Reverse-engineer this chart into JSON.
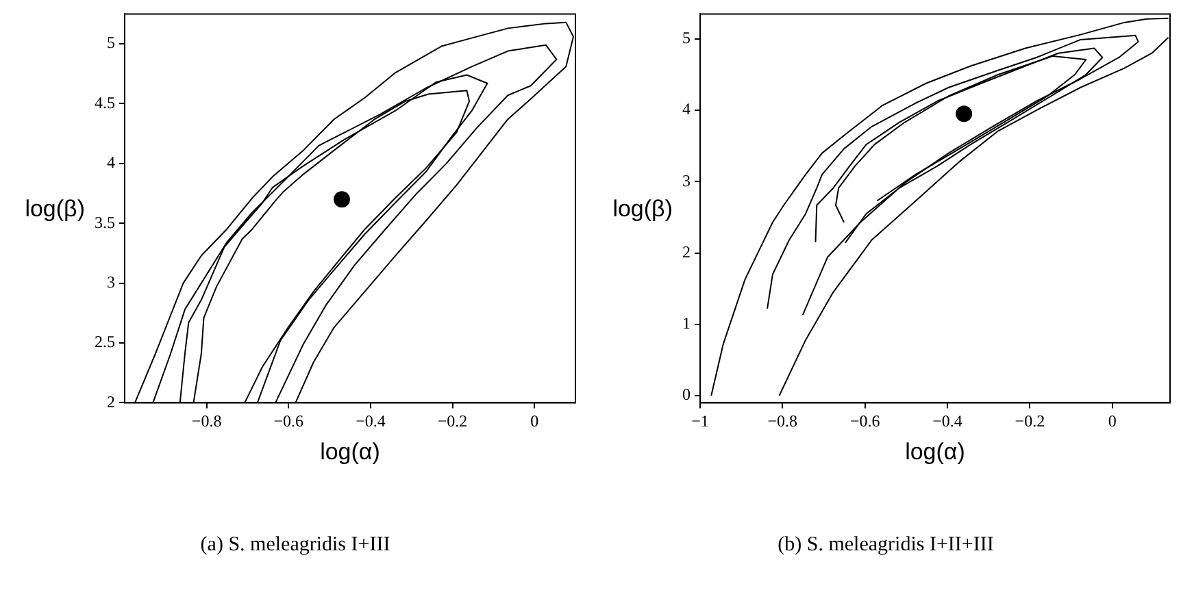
{
  "chart_data": [
    {
      "type": "line",
      "title": "(a) S. meleagridis I+III",
      "xlabel": "log(α)",
      "ylabel": "log(β)",
      "marker": "none",
      "xlim": [
        -1,
        0.1
      ],
      "ylim": [
        2,
        5.25
      ],
      "xticks": [
        {
          "value": -0.8,
          "label": "−0.8"
        },
        {
          "value": -0.6,
          "label": "−0.6"
        },
        {
          "value": -0.4,
          "label": "−0.4"
        },
        {
          "value": -0.2,
          "label": "−0.2"
        },
        0
      ],
      "yticks": [
        2,
        2.5,
        3,
        3.5,
        4,
        4.5,
        5
      ],
      "series": [
        {
          "color": "#000000",
          "x": [
            -0.975,
            -0.925,
            -0.857,
            -0.813,
            -0.751,
            -0.689,
            -0.639,
            -0.564,
            -0.489,
            -0.414,
            -0.339,
            -0.227,
            -0.152,
            -0.065,
            0.028,
            0.077,
            0.095,
            0.077,
            -0.009,
            -0.065,
            -0.115,
            -0.19,
            -0.265,
            -0.339,
            -0.414,
            -0.489,
            -0.539,
            -0.583
          ],
          "values": [
            2.0,
            2.41,
            3.0,
            3.23,
            3.45,
            3.71,
            3.89,
            4.11,
            4.37,
            4.55,
            4.76,
            4.98,
            5.05,
            5.13,
            5.17,
            5.18,
            5.06,
            4.81,
            4.54,
            4.37,
            4.15,
            3.82,
            3.52,
            3.23,
            2.93,
            2.63,
            2.34,
            2.0
          ]
        },
        {
          "color": "#000000",
          "x": [
            -0.931,
            -0.888,
            -0.853,
            -0.813,
            -0.751,
            -0.689,
            -0.601,
            -0.526,
            -0.377,
            -0.265,
            -0.153,
            -0.065,
            0.028,
            0.054,
            -0.009,
            -0.065,
            -0.14,
            -0.215,
            -0.29,
            -0.364,
            -0.439,
            -0.508,
            -0.564,
            -0.632
          ],
          "values": [
            2.0,
            2.41,
            2.78,
            3.0,
            3.34,
            3.59,
            3.89,
            4.15,
            4.41,
            4.63,
            4.81,
            4.94,
            4.99,
            4.87,
            4.65,
            4.57,
            4.3,
            4.0,
            3.74,
            3.45,
            3.15,
            2.82,
            2.49,
            2.0
          ]
        },
        {
          "color": "#000000",
          "x": [
            -0.865,
            -0.853,
            -0.844,
            -0.813,
            -0.757,
            -0.72,
            -0.664,
            -0.639,
            -0.564,
            -0.464,
            -0.34,
            -0.24,
            -0.165,
            -0.115,
            -0.153,
            -0.203,
            -0.265,
            -0.34,
            -0.414,
            -0.489,
            -0.551,
            -0.62,
            -0.676
          ],
          "values": [
            2.0,
            2.41,
            2.67,
            2.86,
            3.3,
            3.45,
            3.67,
            3.8,
            3.98,
            4.2,
            4.44,
            4.68,
            4.74,
            4.67,
            4.44,
            4.22,
            3.93,
            3.67,
            3.41,
            3.11,
            2.86,
            2.52,
            2.0
          ]
        },
        {
          "color": "#000000",
          "x": [
            -0.832,
            -0.813,
            -0.807,
            -0.776,
            -0.713,
            -0.689,
            -0.632,
            -0.614,
            -0.564,
            -0.489,
            -0.39,
            -0.315,
            -0.259,
            -0.165,
            -0.159,
            -0.19,
            -0.265,
            -0.34,
            -0.414,
            -0.477,
            -0.539,
            -0.601,
            -0.664,
            -0.707
          ],
          "values": [
            2.0,
            2.41,
            2.71,
            2.97,
            3.37,
            3.45,
            3.69,
            3.76,
            3.91,
            4.11,
            4.37,
            4.52,
            4.58,
            4.61,
            4.52,
            4.26,
            3.96,
            3.71,
            3.45,
            3.19,
            2.93,
            2.63,
            2.3,
            2.0
          ]
        },
        {
          "type": "scatter",
          "marker": "circle",
          "color": "#000000",
          "x": [
            -0.47
          ],
          "values": [
            3.7
          ]
        }
      ]
    },
    {
      "type": "line",
      "title": "(b) S. meleagridis I+II+III",
      "xlabel": "log(α)",
      "ylabel": "log(β)",
      "marker": "none",
      "xlim": [
        -1,
        0.14
      ],
      "ylim": [
        -0.1,
        5.35
      ],
      "xticks": [
        {
          "value": -1,
          "label": "−1"
        },
        {
          "value": -0.8,
          "label": "−0.8"
        },
        {
          "value": -0.6,
          "label": "−0.6"
        },
        {
          "value": -0.4,
          "label": "−0.4"
        },
        {
          "value": -0.2,
          "label": "−0.2"
        },
        0
      ],
      "yticks": [
        0,
        1,
        2,
        3,
        4,
        5
      ],
      "series": [
        {
          "color": "#000000",
          "x": [
            -0.973,
            -0.944,
            -0.891,
            -0.824,
            -0.797,
            -0.744,
            -0.704,
            -0.637,
            -0.557,
            -0.451,
            -0.344,
            -0.211,
            -0.077,
            0.029,
            0.083,
            0.136
          ],
          "values": [
            0,
            0.72,
            1.63,
            2.43,
            2.67,
            3.1,
            3.4,
            3.71,
            4.07,
            4.38,
            4.62,
            4.87,
            5.06,
            5.23,
            5.28,
            5.29
          ]
        },
        {
          "color": "#000000",
          "x": [
            0.136,
            0.096,
            0.029,
            -0.077,
            -0.171,
            -0.277,
            -0.371,
            -0.477,
            -0.584,
            -0.677,
            -0.744,
            -0.808
          ],
          "values": [
            5.02,
            4.8,
            4.59,
            4.32,
            4.04,
            3.71,
            3.28,
            2.73,
            2.18,
            1.45,
            0.78,
            0
          ]
        },
        {
          "color": "#000000",
          "x": [
            -0.837,
            -0.824,
            -0.784,
            -0.744,
            -0.717,
            -0.704,
            -0.651,
            -0.584,
            -0.477,
            -0.397,
            -0.277,
            -0.184,
            -0.077,
            0.056,
            0.063,
            0.016,
            -0.077,
            -0.184,
            -0.291,
            -0.397,
            -0.504,
            -0.611,
            -0.691,
            -0.751
          ],
          "values": [
            1.22,
            1.7,
            2.18,
            2.55,
            2.91,
            3.1,
            3.46,
            3.77,
            4.1,
            4.32,
            4.56,
            4.74,
            4.99,
            5.05,
            4.96,
            4.74,
            4.44,
            4.13,
            3.77,
            3.4,
            2.98,
            2.43,
            1.94,
            1.13
          ]
        },
        {
          "color": "#000000",
          "x": [
            -0.72,
            -0.717,
            -0.677,
            -0.637,
            -0.597,
            -0.517,
            -0.424,
            -0.317,
            -0.211,
            -0.131,
            -0.044,
            -0.024,
            -0.064,
            -0.131,
            -0.237,
            -0.344,
            -0.424,
            -0.517,
            -0.597,
            -0.648
          ],
          "values": [
            2.15,
            2.67,
            2.91,
            3.22,
            3.52,
            3.83,
            4.13,
            4.38,
            4.62,
            4.8,
            4.87,
            4.74,
            4.5,
            4.26,
            3.89,
            3.52,
            3.22,
            2.91,
            2.55,
            2.14
          ]
        },
        {
          "color": "#000000",
          "x": [
            -0.651,
            -0.671,
            -0.664,
            -0.624,
            -0.577,
            -0.504,
            -0.397,
            -0.277,
            -0.144,
            -0.064,
            -0.091,
            -0.157,
            -0.264,
            -0.371,
            -0.477,
            -0.571
          ],
          "values": [
            2.43,
            2.67,
            2.91,
            3.22,
            3.52,
            3.83,
            4.2,
            4.5,
            4.76,
            4.71,
            4.5,
            4.2,
            3.83,
            3.46,
            3.1,
            2.73
          ]
        },
        {
          "type": "scatter",
          "marker": "circle",
          "color": "#000000",
          "x": [
            -0.36
          ],
          "values": [
            3.95
          ]
        }
      ]
    }
  ]
}
